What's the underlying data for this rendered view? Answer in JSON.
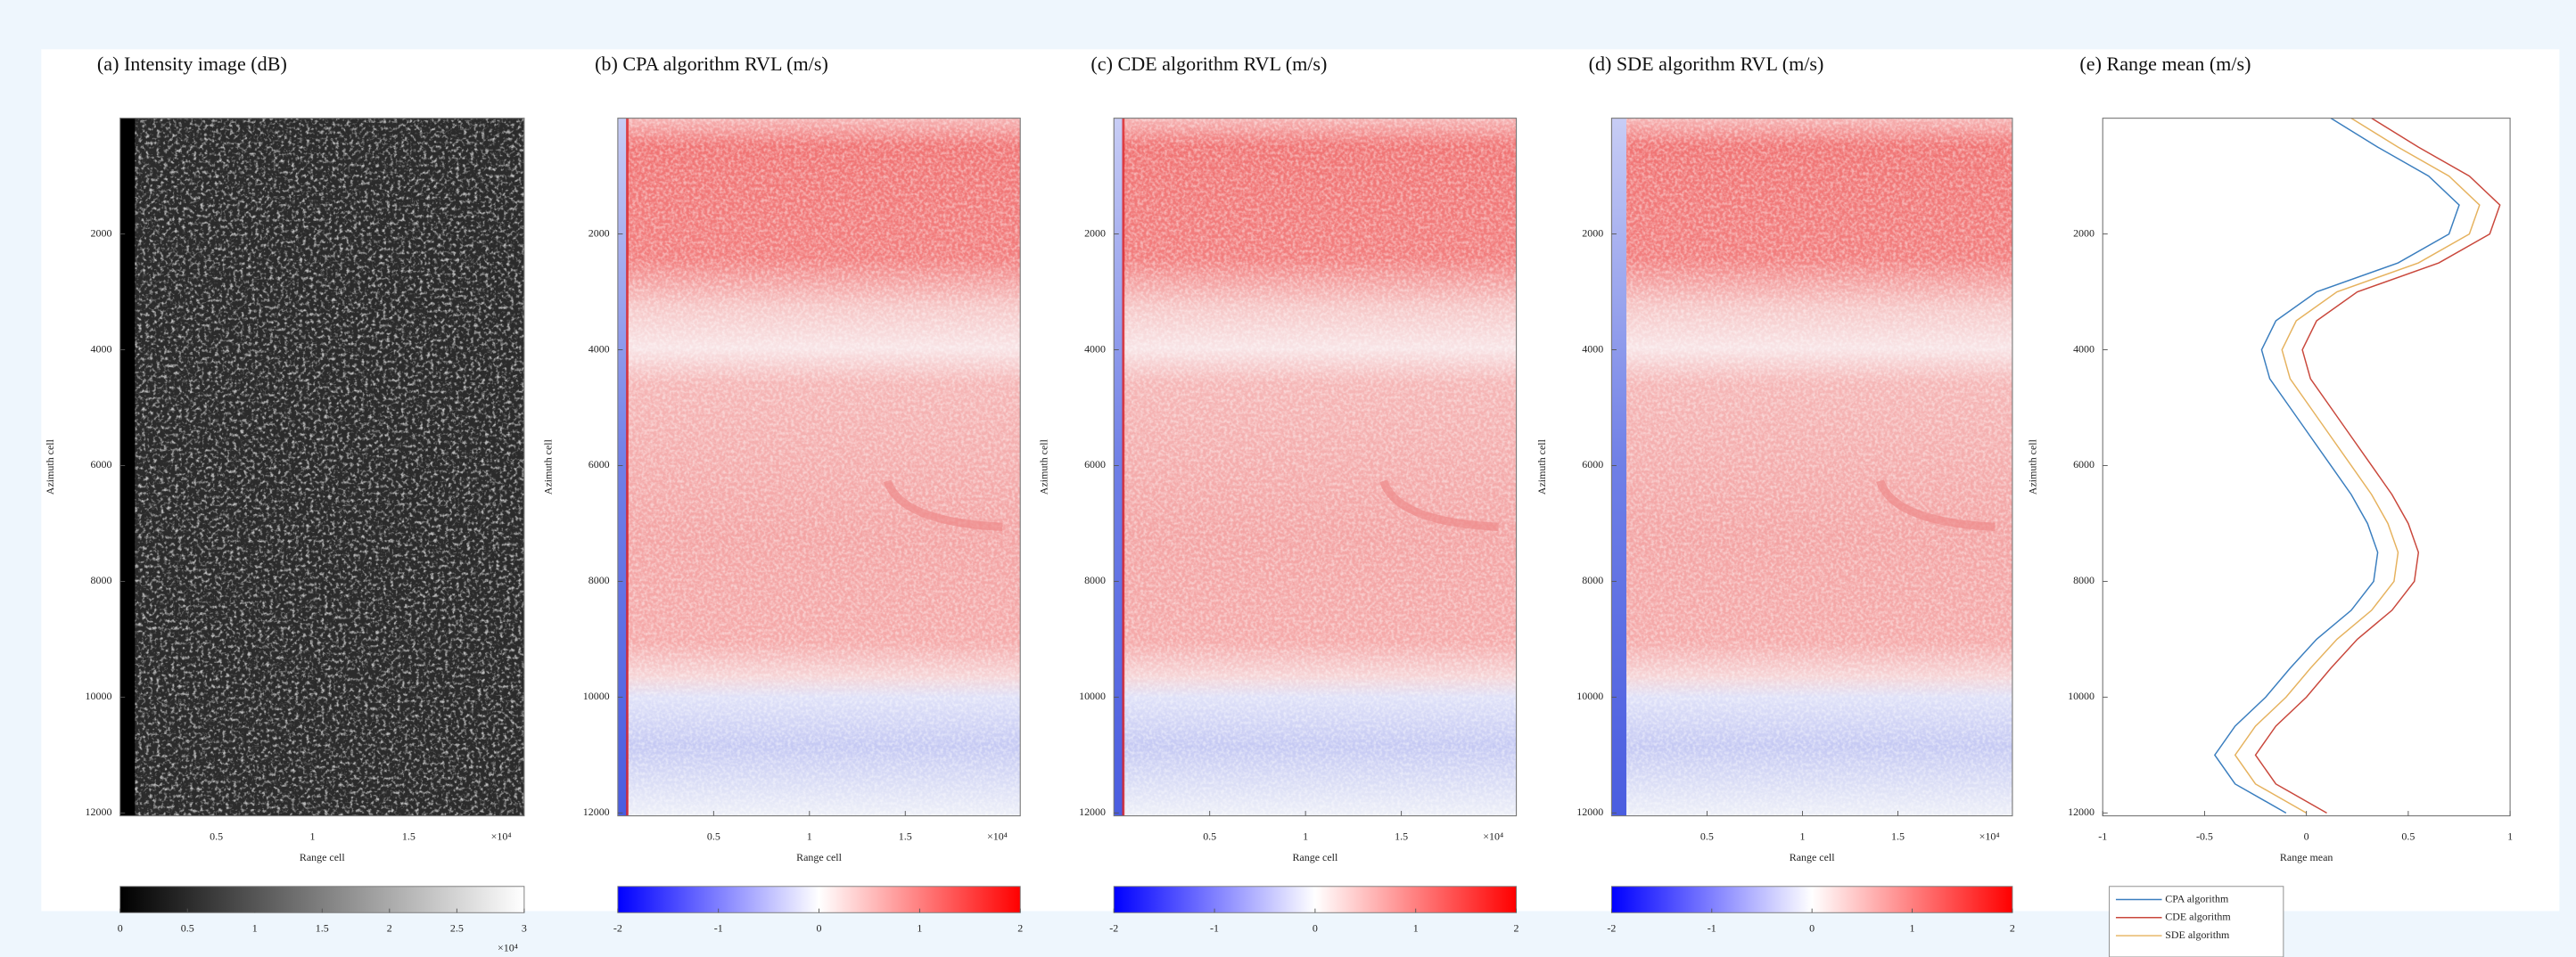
{
  "chart_data": [
    {
      "type": "image",
      "title": "(a) Intensity image (dB)",
      "xlabel": "Range cell",
      "ylabel": "Azimuth cell",
      "xlim": [
        0,
        21000
      ],
      "xticks": [
        {
          "value": 5000,
          "label": "0.5"
        },
        {
          "value": 10000,
          "label": "1"
        },
        {
          "value": 15000,
          "label": "1.5"
        }
      ],
      "x_exponent": "×10⁴",
      "ylim": [
        0,
        12050
      ],
      "yaxis_reversed": true,
      "yticks": [
        2000,
        4000,
        6000,
        8000,
        10000,
        12000
      ],
      "colormap": "gray",
      "colorbar": {
        "lim": [
          0,
          30000
        ],
        "ticks": [
          0,
          {
            "value": 5000,
            "label": "0.5"
          },
          {
            "value": 10000,
            "label": "1"
          },
          {
            "value": 15000,
            "label": "1.5"
          },
          {
            "value": 20000,
            "label": "2"
          },
          {
            "value": 25000,
            "label": "2.5"
          },
          {
            "value": 30000,
            "label": "3"
          }
        ],
        "exponent": "×10⁴"
      }
    },
    {
      "type": "image",
      "title": "(b) CPA algorithm RVL (m/s)",
      "xlabel": "Range cell",
      "ylabel": "Azimuth cell",
      "xlim": [
        0,
        21000
      ],
      "xticks": [
        {
          "value": 5000,
          "label": "0.5"
        },
        {
          "value": 10000,
          "label": "1"
        },
        {
          "value": 15000,
          "label": "1.5"
        }
      ],
      "x_exponent": "×10⁴",
      "ylim": [
        0,
        12050
      ],
      "yaxis_reversed": true,
      "yticks": [
        2000,
        4000,
        6000,
        8000,
        10000,
        12000
      ],
      "colormap": "bwr",
      "colorbar": {
        "lim": [
          -2,
          2
        ],
        "ticks": [
          -2,
          -1,
          0,
          1,
          2
        ]
      }
    },
    {
      "type": "image",
      "title": "(c) CDE algorithm RVL (m/s)",
      "xlabel": "Range cell",
      "ylabel": "Azimuth cell",
      "xlim": [
        0,
        21000
      ],
      "xticks": [
        {
          "value": 5000,
          "label": "0.5"
        },
        {
          "value": 10000,
          "label": "1"
        },
        {
          "value": 15000,
          "label": "1.5"
        }
      ],
      "x_exponent": "×10⁴",
      "ylim": [
        0,
        12050
      ],
      "yaxis_reversed": true,
      "yticks": [
        2000,
        4000,
        6000,
        8000,
        10000,
        12000
      ],
      "colormap": "bwr",
      "colorbar": {
        "lim": [
          -2,
          2
        ],
        "ticks": [
          -2,
          -1,
          0,
          1,
          2
        ]
      }
    },
    {
      "type": "image",
      "title": "(d) SDE algorithm RVL (m/s)",
      "xlabel": "Range cell",
      "ylabel": "Azimuth cell",
      "xlim": [
        0,
        21000
      ],
      "xticks": [
        {
          "value": 5000,
          "label": "0.5"
        },
        {
          "value": 10000,
          "label": "1"
        },
        {
          "value": 15000,
          "label": "1.5"
        }
      ],
      "x_exponent": "×10⁴",
      "ylim": [
        0,
        12050
      ],
      "yaxis_reversed": true,
      "yticks": [
        2000,
        4000,
        6000,
        8000,
        10000,
        12000
      ],
      "colormap": "bwr",
      "colorbar": {
        "lim": [
          -2,
          2
        ],
        "ticks": [
          -2,
          -1,
          0,
          1,
          2
        ]
      }
    },
    {
      "type": "line",
      "title": "(e) Range mean (m/s)",
      "xlabel": "Range mean",
      "ylabel": "Azimuth cell",
      "xlim": [
        -1,
        1
      ],
      "xticks": [
        -1,
        -0.5,
        0,
        0.5,
        1
      ],
      "ylim": [
        0,
        12050
      ],
      "yaxis_reversed": true,
      "yticks": [
        2000,
        4000,
        6000,
        8000,
        10000,
        12000
      ],
      "y": [
        0,
        500,
        1000,
        1500,
        2000,
        2500,
        3000,
        3500,
        4000,
        4500,
        5000,
        5500,
        6000,
        6500,
        7000,
        7500,
        8000,
        8500,
        9000,
        9500,
        10000,
        10500,
        11000,
        11500,
        12000
      ],
      "series": [
        {
          "name": "CPA algorithm",
          "color": "#3a7ebf",
          "values": [
            0.12,
            0.35,
            0.6,
            0.75,
            0.7,
            0.45,
            0.05,
            -0.15,
            -0.22,
            -0.18,
            -0.08,
            0.02,
            0.12,
            0.22,
            0.3,
            0.35,
            0.33,
            0.22,
            0.05,
            -0.08,
            -0.2,
            -0.35,
            -0.45,
            -0.35,
            -0.1
          ]
        },
        {
          "name": "CDE algorithm",
          "color": "#c9473b",
          "values": [
            0.32,
            0.55,
            0.8,
            0.95,
            0.9,
            0.65,
            0.25,
            0.05,
            -0.02,
            0.02,
            0.12,
            0.22,
            0.32,
            0.42,
            0.5,
            0.55,
            0.53,
            0.42,
            0.25,
            0.12,
            0,
            -0.15,
            -0.25,
            -0.15,
            0.1
          ]
        },
        {
          "name": "SDE algorithm",
          "color": "#e6b25e",
          "values": [
            0.22,
            0.45,
            0.7,
            0.85,
            0.8,
            0.55,
            0.15,
            -0.05,
            -0.12,
            -0.08,
            0.02,
            0.12,
            0.22,
            0.32,
            0.4,
            0.45,
            0.43,
            0.32,
            0.15,
            0.02,
            -0.1,
            -0.25,
            -0.35,
            -0.25,
            0
          ]
        }
      ],
      "legend": "bottom-left"
    }
  ]
}
